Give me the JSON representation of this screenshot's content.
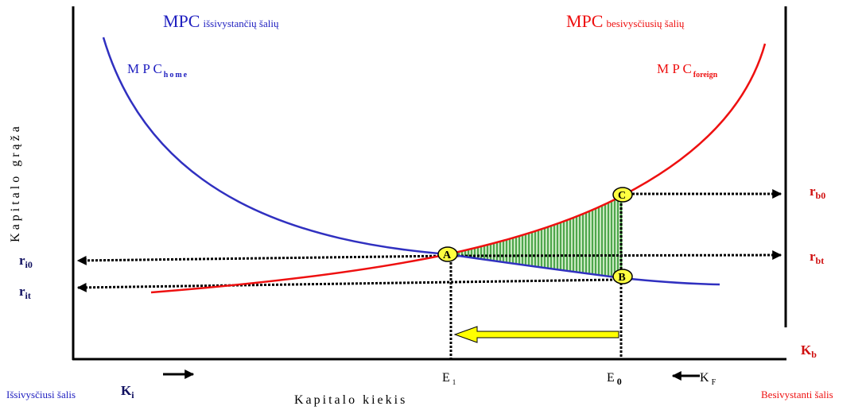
{
  "curves": {
    "developed": {
      "main": "MPC",
      "sub": "išsivystančių šalių"
    },
    "developing": {
      "main": "MPC",
      "sub": "besivysčiusių šalių"
    },
    "home": {
      "main": "M P C",
      "sub": "home"
    },
    "foreign": {
      "main": "M P C",
      "sub": "foreign"
    }
  },
  "axes": {
    "y_label": "Kapitalo grąža",
    "x_label": "Kapitalo kiekis"
  },
  "rates": {
    "ri0": {
      "main": "r",
      "sub": "i0"
    },
    "rit": {
      "main": "r",
      "sub": "it"
    },
    "rb0": {
      "main": "r",
      "sub": "b0"
    },
    "rbt": {
      "main": "r",
      "sub": "bt"
    }
  },
  "capital": {
    "kb": {
      "main": "K",
      "sub": "b"
    },
    "ki": {
      "main": "K",
      "sub": "i"
    },
    "kf": {
      "main": "K",
      "sub": "F"
    }
  },
  "equilibria": {
    "e1": {
      "main": "E",
      "sub": "1"
    },
    "e0": {
      "main": "E",
      "sub": "0"
    }
  },
  "points": {
    "a": "A",
    "b": "B",
    "c": "C"
  },
  "countries": {
    "left": "Išsivysčiusi šalis",
    "right": "Besivystanti šalis"
  }
}
